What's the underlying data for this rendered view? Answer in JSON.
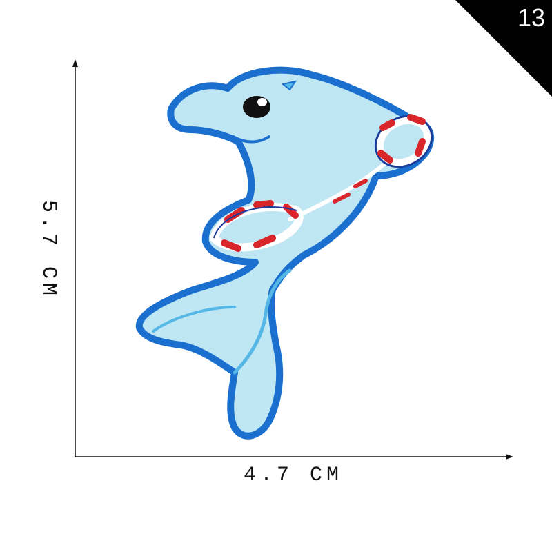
{
  "badge": {
    "number": "13",
    "background_color": "#000000",
    "text_color": "#ffffff"
  },
  "dimensions": {
    "width_label": "4.7 CM",
    "height_label": "5.7 CM",
    "line_color": "#111111"
  },
  "patch": {
    "subject": "embroidered dolphin patch with swim ring",
    "colors": {
      "body": "#bfe6f3",
      "outline": "#1a6fcf",
      "ring_red": "#d8262b",
      "ring_white": "#ffffff",
      "ring_blue": "#1b3c9b",
      "eye": "#111111"
    }
  }
}
